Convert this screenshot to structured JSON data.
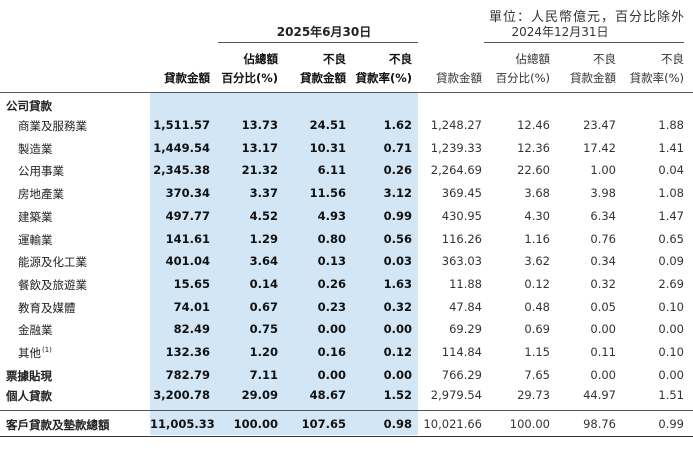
{
  "unit_note": "單位：人民幣億元，百分比除外",
  "periods": {
    "current": "2025年6月30日",
    "prior": "2024年12月31日"
  },
  "columns": {
    "loan_amount": "貸款金額",
    "pct_line1": "佔總額",
    "pct_line2": "百分比(%)",
    "npl_line1": "不良",
    "npl_line2": "貸款金額",
    "nplr_line1": "不良",
    "nplr_line2": "貸款率(%)"
  },
  "section_corporate": "公司貸款",
  "rows": [
    {
      "label": "商業及服務業",
      "cur": [
        "1,511.57",
        "13.73",
        "24.51",
        "1.62"
      ],
      "prev": [
        "1,248.27",
        "12.46",
        "23.47",
        "1.88"
      ]
    },
    {
      "label": "製造業",
      "cur": [
        "1,449.54",
        "13.17",
        "10.31",
        "0.71"
      ],
      "prev": [
        "1,239.33",
        "12.36",
        "17.42",
        "1.41"
      ]
    },
    {
      "label": "公用事業",
      "cur": [
        "2,345.38",
        "21.32",
        "6.11",
        "0.26"
      ],
      "prev": [
        "2,264.69",
        "22.60",
        "1.00",
        "0.04"
      ]
    },
    {
      "label": "房地產業",
      "cur": [
        "370.34",
        "3.37",
        "11.56",
        "3.12"
      ],
      "prev": [
        "369.45",
        "3.68",
        "3.98",
        "1.08"
      ]
    },
    {
      "label": "建築業",
      "cur": [
        "497.77",
        "4.52",
        "4.93",
        "0.99"
      ],
      "prev": [
        "430.95",
        "4.30",
        "6.34",
        "1.47"
      ]
    },
    {
      "label": "運輸業",
      "cur": [
        "141.61",
        "1.29",
        "0.80",
        "0.56"
      ],
      "prev": [
        "116.26",
        "1.16",
        "0.76",
        "0.65"
      ]
    },
    {
      "label": "能源及化工業",
      "cur": [
        "401.04",
        "3.64",
        "0.13",
        "0.03"
      ],
      "prev": [
        "363.03",
        "3.62",
        "0.34",
        "0.09"
      ]
    },
    {
      "label": "餐飲及旅遊業",
      "cur": [
        "15.65",
        "0.14",
        "0.26",
        "1.63"
      ],
      "prev": [
        "11.88",
        "0.12",
        "0.32",
        "2.69"
      ]
    },
    {
      "label": "教育及媒體",
      "cur": [
        "74.01",
        "0.67",
        "0.23",
        "0.32"
      ],
      "prev": [
        "47.84",
        "0.48",
        "0.05",
        "0.10"
      ]
    },
    {
      "label": "金融業",
      "cur": [
        "82.49",
        "0.75",
        "0.00",
        "0.00"
      ],
      "prev": [
        "69.29",
        "0.69",
        "0.00",
        "0.00"
      ]
    },
    {
      "label": "其他",
      "sup": "(1)",
      "cur": [
        "132.36",
        "1.20",
        "0.16",
        "0.12"
      ],
      "prev": [
        "114.84",
        "1.15",
        "0.11",
        "0.10"
      ]
    }
  ],
  "discounted_bills": {
    "label": "票據貼現",
    "cur": [
      "782.79",
      "7.11",
      "0.00",
      "0.00"
    ],
    "prev": [
      "766.29",
      "7.65",
      "0.00",
      "0.00"
    ]
  },
  "personal_loans": {
    "label": "個人貸款",
    "cur": [
      "3,200.78",
      "29.09",
      "48.67",
      "1.52"
    ],
    "prev": [
      "2,979.54",
      "29.73",
      "44.97",
      "1.51"
    ]
  },
  "total": {
    "label": "客戶貸款及墊款總額",
    "cur": [
      "11,005.33",
      "100.00",
      "107.65",
      "0.98"
    ],
    "prev": [
      "10,021.66",
      "100.00",
      "98.76",
      "0.99"
    ]
  }
}
